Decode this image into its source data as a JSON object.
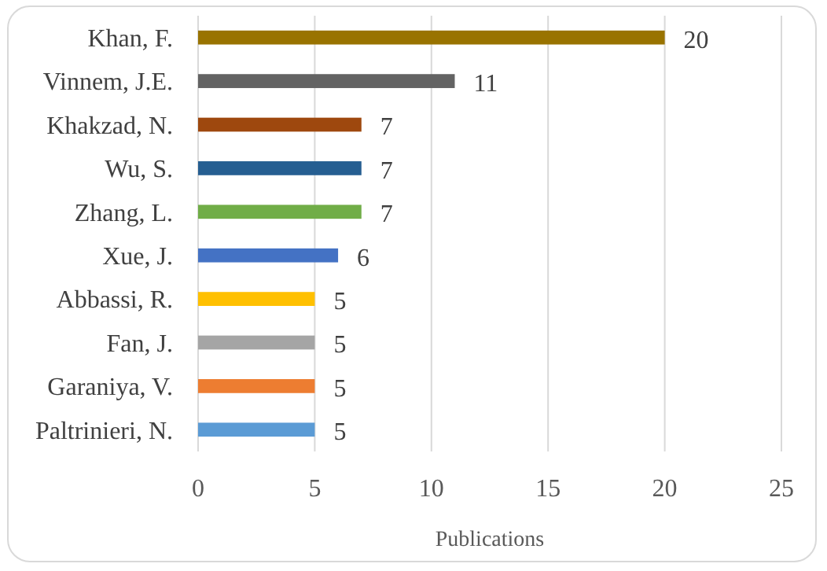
{
  "chart_data": {
    "type": "bar",
    "orientation": "horizontal",
    "categories": [
      "Khan, F.",
      "Vinnem, J.E.",
      "Khakzad, N.",
      "Wu, S.",
      "Zhang, L.",
      "Xue, J.",
      "Abbassi, R.",
      "Fan, J.",
      "Garaniya, V.",
      "Paltrinieri, N."
    ],
    "values": [
      20,
      11,
      7,
      7,
      7,
      6,
      5,
      5,
      5,
      5
    ],
    "colors": [
      "#997300",
      "#636363",
      "#9e480e",
      "#255e91",
      "#70ad47",
      "#4472c4",
      "#ffc000",
      "#a5a5a5",
      "#ed7d31",
      "#5b9bd5"
    ],
    "xlabel": "Publications",
    "xlim": [
      0,
      25
    ],
    "xticks": [
      0,
      5,
      10,
      15,
      20,
      25
    ],
    "grid": "x",
    "data_labels": true
  }
}
